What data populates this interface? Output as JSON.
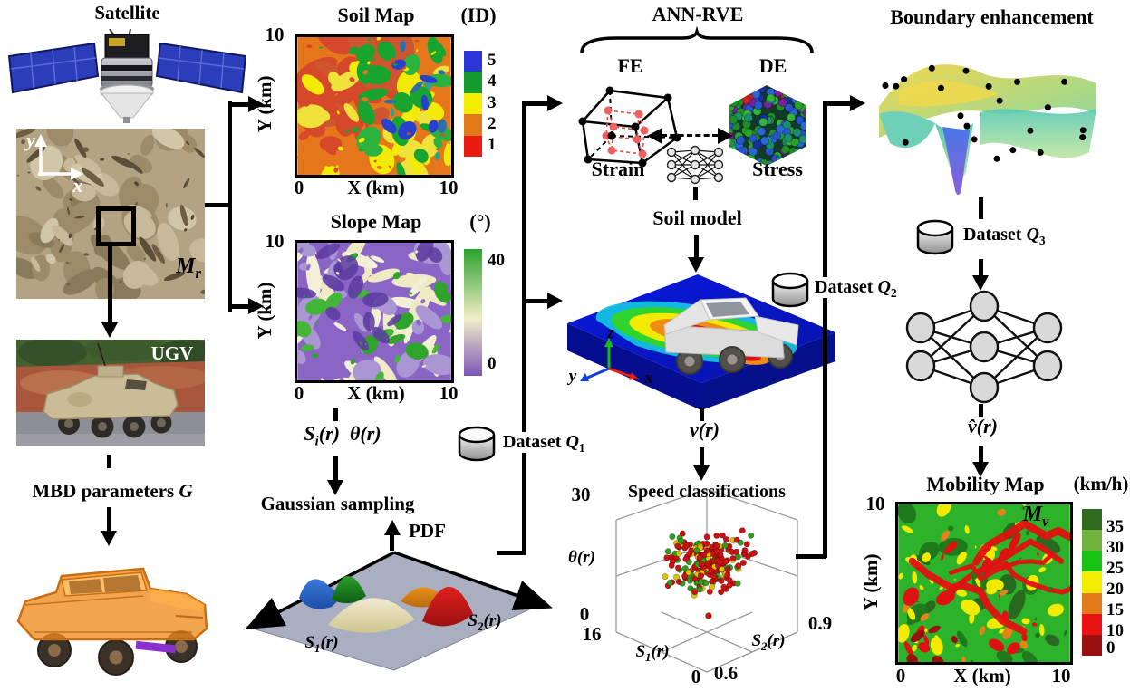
{
  "satellite": {
    "title": "Satellite"
  },
  "terrain": {
    "y_axis": "y",
    "x_axis": "x",
    "symbol": "M",
    "symbol_sub": "r"
  },
  "ugv": {
    "label": "UGV"
  },
  "mbd": {
    "label": "MBD parameters",
    "symbol": "G"
  },
  "soil_map": {
    "title": "Soil Map",
    "unit": "(ID)",
    "y_max": "10",
    "y_label": "Y (km)",
    "x_min": "0",
    "x_label": "X (km)",
    "x_max": "10",
    "colorbar_labels": [
      "5",
      "4",
      "3",
      "2",
      "1"
    ],
    "colorbar_colors": [
      "#2b35d8",
      "#149a2e",
      "#f5ec00",
      "#e2791b",
      "#ea1c12"
    ]
  },
  "slope_map": {
    "title": "Slope Map",
    "unit": "(°)",
    "y_max": "10",
    "y_label": "Y (km)",
    "x_min": "0",
    "x_label": "X (km)",
    "x_max": "10",
    "colorbar_labels": [
      "40",
      "0"
    ],
    "colorbar_colors": [
      "#2ca32c",
      "#f2edc8",
      "#7a57b8"
    ]
  },
  "sampling": {
    "si": "S",
    "si_sub": "i",
    "si_arg": "(r)",
    "theta": "θ(r)",
    "gaussian": "Gaussian sampling",
    "pdf": "PDF",
    "s1": "S",
    "s1_sub": "1",
    "s1_arg": "(r)",
    "s2": "S",
    "s2_sub": "2",
    "s2_arg": "(r)"
  },
  "datasets": {
    "prefix": "Dataset",
    "symbol": "Q",
    "q1": "1",
    "q2": "2",
    "q3": "3"
  },
  "ann": {
    "title": "ANN-RVE",
    "fe": "FE",
    "de": "DE",
    "strain": "Strain",
    "stress": "Stress",
    "soil_model": "Soil model",
    "v": "v(r)",
    "triad_z": "z",
    "triad_y": "y",
    "triad_x": "x"
  },
  "speed": {
    "title": "Speed classifications",
    "theta": "θ(r)",
    "theta_max": "30",
    "theta_min": "0",
    "s1_max": "16",
    "s1_min": "0",
    "s1": "S",
    "s1_sub": "1",
    "s1_arg": "(r)",
    "s2_min": "0.6",
    "s2_max": "0.9",
    "s2": "S",
    "s2_sub": "2",
    "s2_arg": "(r)",
    "point_colors": [
      "#cc1111",
      "#ddc300",
      "#2f9e18"
    ]
  },
  "boundary": {
    "title": "Boundary enhancement",
    "vhat": "v̂(r)"
  },
  "mobility_map": {
    "title": "Mobility Map",
    "unit": "(km/h)",
    "symbol": "M",
    "symbol_sub": "v",
    "y_max": "10",
    "y_label": "Y (km)",
    "x_min": "0",
    "x_label": "X (km)",
    "x_max": "10",
    "colorbar_labels": [
      "35",
      "30",
      "25",
      "20",
      "15",
      "10",
      "0"
    ],
    "colorbar_colors": [
      "#2e6b1e",
      "#71b33c",
      "#17c214",
      "#f5ec00",
      "#e2791b",
      "#ea1212",
      "#9c0f0f"
    ]
  }
}
